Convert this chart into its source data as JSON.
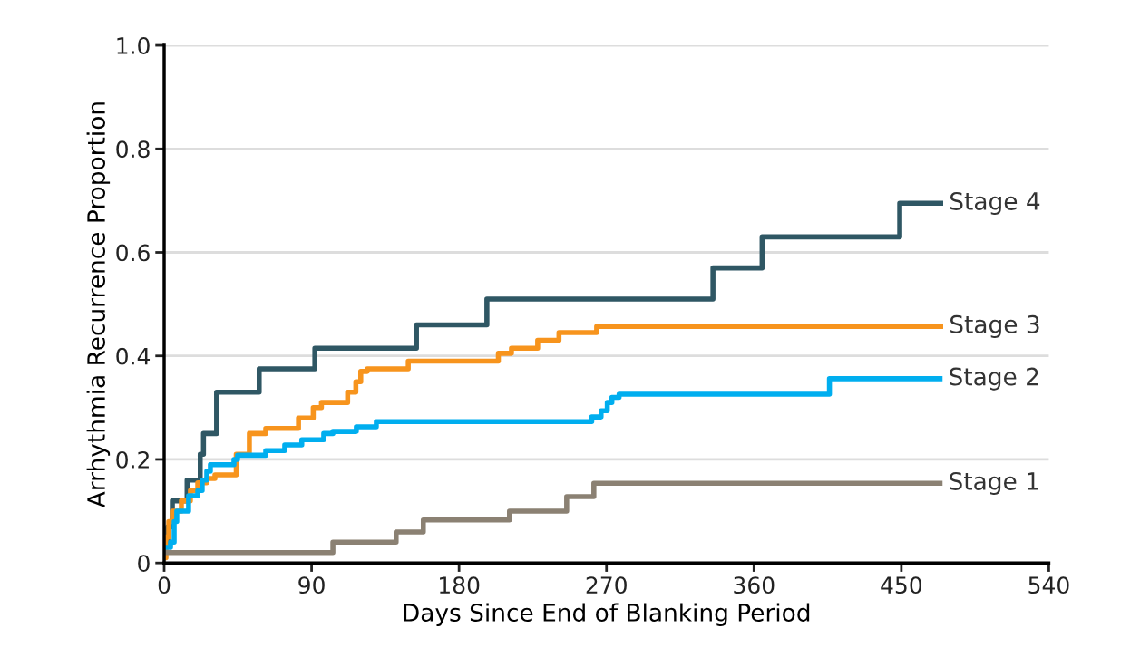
{
  "chart_data": {
    "type": "step",
    "xlabel": "Days Since End of Blanking Period",
    "ylabel": "Arrhythmia Recurrence Proportion",
    "xlim": [
      0,
      540
    ],
    "xticks": [
      0,
      90,
      180,
      270,
      360,
      450,
      540
    ],
    "ylim": [
      0,
      1
    ],
    "yticks": [
      0,
      0.2,
      0.4,
      0.6,
      0.8,
      {
        "value": 1,
        "label": "1.0"
      }
    ],
    "grid": "y",
    "legend": false,
    "series": [
      {
        "name": "Stage 4",
        "color": "#2f5764",
        "x": [
          0,
          2.2,
          5,
          14,
          22,
          24,
          32,
          58,
          92,
          154,
          197,
          335,
          365,
          449,
          474
        ],
        "values": [
          0.04,
          0.07,
          0.12,
          0.16,
          0.21,
          0.25,
          0.33,
          0.375,
          0.415,
          0.46,
          0.51,
          0.57,
          0.63,
          0.695,
          0.695
        ]
      },
      {
        "name": "Stage 3",
        "color": "#f7941d",
        "x": [
          0,
          1.1,
          2.8,
          5,
          10.5,
          16,
          20.5,
          26,
          31,
          44,
          52,
          62,
          82,
          91,
          96,
          112,
          117,
          120,
          124,
          149,
          204,
          212,
          228,
          241,
          264,
          474
        ],
        "values": [
          0.01,
          0.05,
          0.08,
          0.1,
          0.12,
          0.14,
          0.155,
          0.163,
          0.17,
          0.21,
          0.25,
          0.26,
          0.28,
          0.3,
          0.31,
          0.33,
          0.35,
          0.37,
          0.375,
          0.39,
          0.405,
          0.415,
          0.43,
          0.445,
          0.457,
          0.457
        ]
      },
      {
        "name": "Stage 2",
        "color": "#00aeef",
        "x": [
          0,
          3.9,
          6.1,
          7.7,
          14.9,
          20.5,
          23.2,
          26,
          28.2,
          42.6,
          44.8,
          62,
          73.6,
          84,
          97.4,
          103,
          117.3,
          129.5,
          261,
          266.7,
          270.5,
          273.3,
          277.7,
          406.1,
          473.6
        ],
        "values": [
          0.03,
          0.04,
          0.08,
          0.1,
          0.13,
          0.14,
          0.16,
          0.177,
          0.19,
          0.2,
          0.208,
          0.217,
          0.228,
          0.238,
          0.25,
          0.254,
          0.263,
          0.273,
          0.282,
          0.294,
          0.31,
          0.32,
          0.326,
          0.356,
          0.356
        ]
      },
      {
        "name": "Stage 1",
        "color": "#8b8173",
        "x": [
          0,
          103,
          141.6,
          158.2,
          210.8,
          245.7,
          262.3,
          473.6
        ],
        "values": [
          0.02,
          0.04,
          0.06,
          0.083,
          0.1,
          0.128,
          0.154,
          0.154
        ]
      }
    ]
  }
}
